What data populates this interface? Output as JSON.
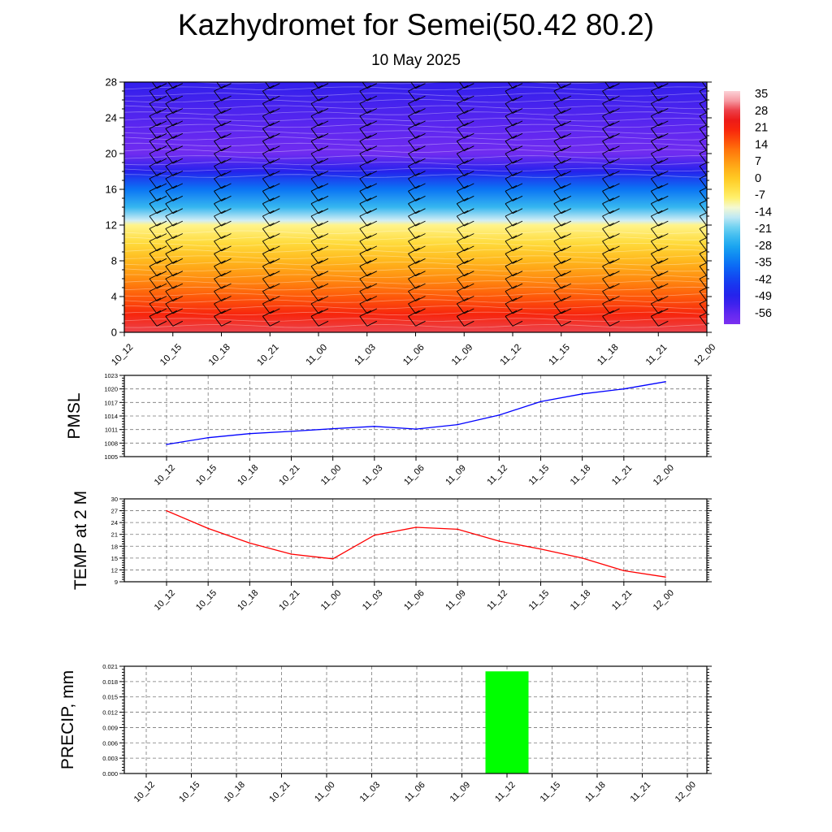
{
  "title": "Kazhydromet for Semei(50.42 80.2)",
  "subtitle": "10 May 2025",
  "time_labels": [
    "10_12",
    "10_15",
    "10_18",
    "10_21",
    "11_00",
    "11_03",
    "11_06",
    "11_09",
    "11_12",
    "11_15",
    "11_18",
    "11_21",
    "12_00"
  ],
  "chart_data": [
    {
      "type": "heatmap",
      "title": "",
      "xlabel": "",
      "ylabel": "",
      "y_ticks": [
        0,
        4,
        8,
        12,
        16,
        20,
        24,
        28
      ],
      "ylim": [
        0,
        28
      ],
      "colorbar_labels": [
        "35",
        "28",
        "21",
        "14",
        "7",
        "0",
        "-7",
        "-14",
        "-21",
        "-28",
        "-35",
        "-42",
        "-49",
        "-56"
      ],
      "colorbar_range": [
        -60,
        38
      ],
      "temperature_profile": [
        {
          "level": 0,
          "value": 30
        },
        {
          "level": 2,
          "value": 22
        },
        {
          "level": 4,
          "value": 16
        },
        {
          "level": 6,
          "value": 10
        },
        {
          "level": 8,
          "value": 4
        },
        {
          "level": 10,
          "value": -2
        },
        {
          "level": 12,
          "value": -8
        },
        {
          "level": 12.5,
          "value": -14
        },
        {
          "level": 14,
          "value": -24
        },
        {
          "level": 16,
          "value": -34
        },
        {
          "level": 18,
          "value": -48
        },
        {
          "level": 20,
          "value": -58
        },
        {
          "level": 22,
          "value": -56
        },
        {
          "level": 24,
          "value": -54
        },
        {
          "level": 26,
          "value": -52
        },
        {
          "level": 28,
          "value": -50
        }
      ]
    },
    {
      "type": "line",
      "ylabel": "PMSL",
      "y_ticks": [
        1005,
        1008,
        1011,
        1014,
        1017,
        1020,
        1023
      ],
      "ylim": [
        1005,
        1023
      ],
      "color": "#0000ff",
      "values": [
        1007.7,
        1009.2,
        1010.1,
        1010.6,
        1011.2,
        1011.7,
        1011.1,
        1012.1,
        1014.2,
        1017.2,
        1018.9,
        1020.0,
        1021.6
      ]
    },
    {
      "type": "line",
      "ylabel": "TEMP at 2 M",
      "y_ticks": [
        9,
        12,
        15,
        18,
        21,
        24,
        27,
        30
      ],
      "ylim": [
        9,
        30
      ],
      "color": "#ff0000",
      "values": [
        27.0,
        22.5,
        18.8,
        16.0,
        14.8,
        20.8,
        22.8,
        22.3,
        19.3,
        17.3,
        15.0,
        11.8,
        10.2
      ]
    },
    {
      "type": "bar",
      "ylabel": "PRECIP, mm",
      "y_ticks": [
        "0.000",
        "0.003",
        "0.006",
        "0.009",
        "0.012",
        "0.015",
        "0.018",
        "0.021"
      ],
      "ylim": [
        0,
        0.021
      ],
      "color": "#00ff00",
      "values": [
        0,
        0,
        0,
        0,
        0,
        0,
        0,
        0,
        0.02,
        0,
        0,
        0,
        0
      ]
    }
  ]
}
